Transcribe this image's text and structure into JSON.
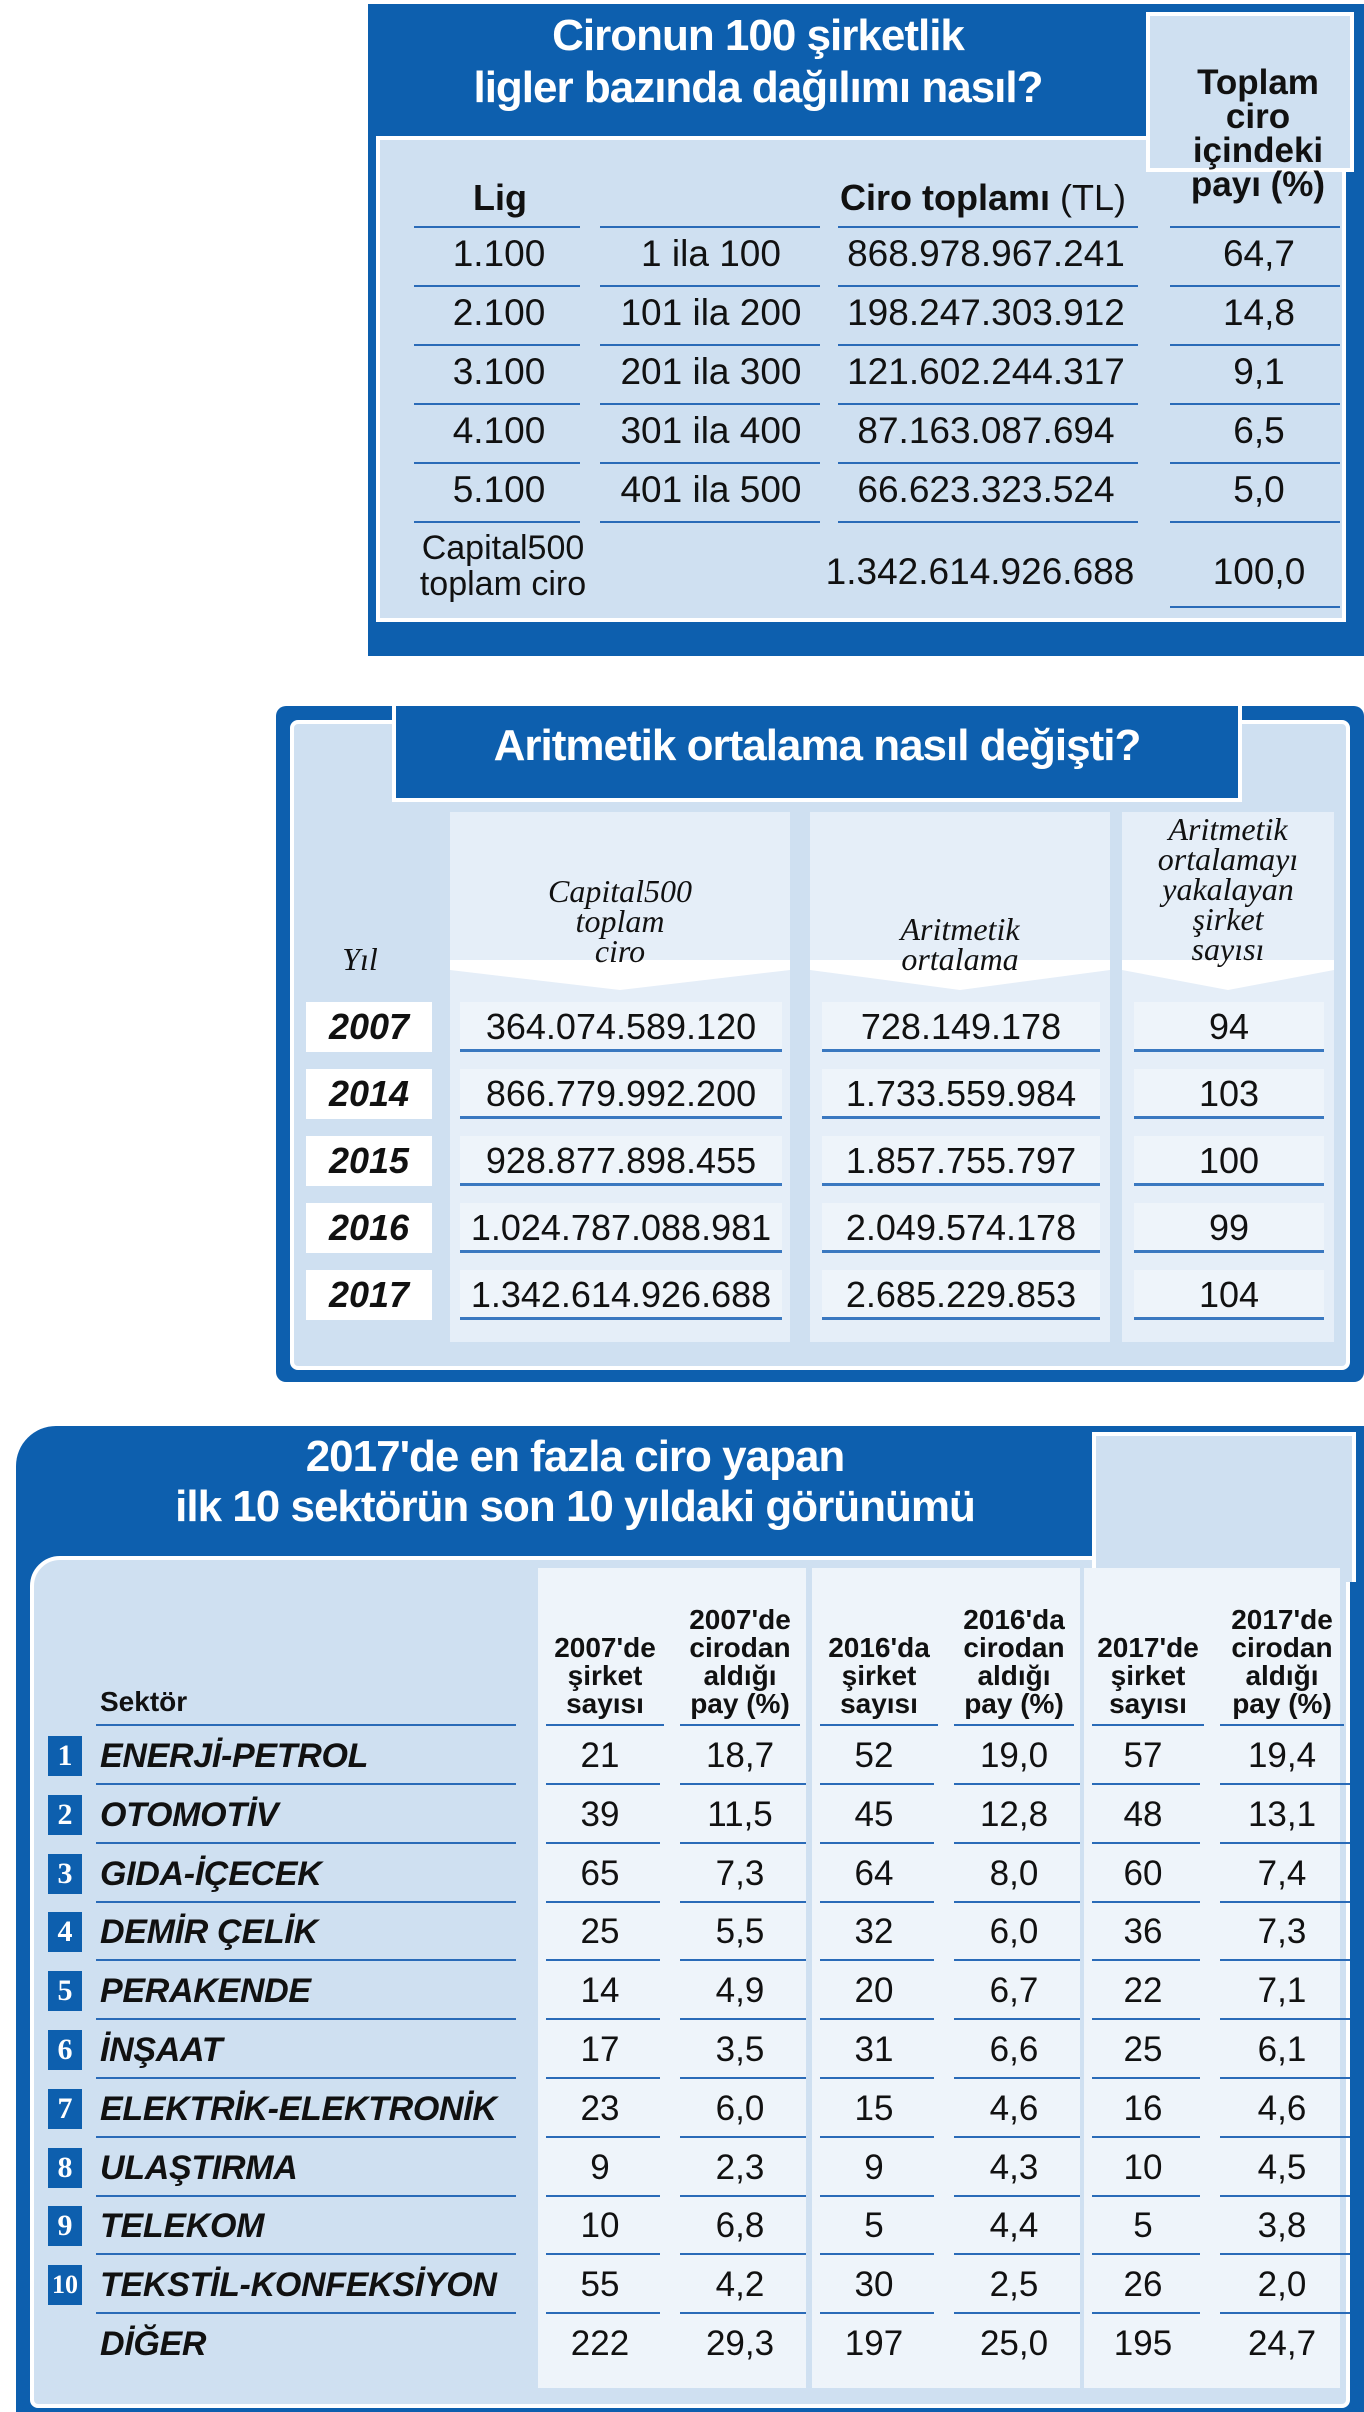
{
  "table1": {
    "title_line1": "Cironun 100 şirketlik",
    "title_line2": "ligler bazında dağılımı nasıl?",
    "header_lig": "Lig",
    "header_ciro": "Ciro toplamı",
    "header_ciro_unit": "(TL)",
    "header_pay_line1": "Toplam",
    "header_pay_line2": "ciro",
    "header_pay_line3": "içindeki",
    "header_pay_line4": "payı (%)",
    "rows": [
      {
        "lig": "1.100",
        "range": "1 ila 100",
        "ciro": "868.978.967.241",
        "pay": "64,7"
      },
      {
        "lig": "2.100",
        "range": "101 ila 200",
        "ciro": "198.247.303.912",
        "pay": "14,8"
      },
      {
        "lig": "3.100",
        "range": "201 ila 300",
        "ciro": "121.602.244.317",
        "pay": "9,1"
      },
      {
        "lig": "4.100",
        "range": "301 ila 400",
        "ciro": "87.163.087.694",
        "pay": "6,5"
      },
      {
        "lig": "5.100",
        "range": "401 ila 500",
        "ciro": "66.623.323.524",
        "pay": "5,0"
      }
    ],
    "total_label_line1": "Capital500",
    "total_label_line2": "toplam ciro",
    "total_ciro": "1.342.614.926.688",
    "total_pay": "100,0"
  },
  "table2": {
    "title": "Aritmetik ortalama nasıl değişti?",
    "header_year": "Yıl",
    "header_total_line1": "Capital500",
    "header_total_line2": "toplam",
    "header_total_line3": "ciro",
    "header_avg_line1": "Aritmetik",
    "header_avg_line2": "ortalama",
    "header_count_line1": "Aritmetik",
    "header_count_line2": "ortalamayı",
    "header_count_line3": "yakalayan",
    "header_count_line4": "şirket",
    "header_count_line5": "sayısı",
    "rows": [
      {
        "year": "2007",
        "total": "364.074.589.120",
        "avg": "728.149.178",
        "count": "94"
      },
      {
        "year": "2014",
        "total": "866.779.992.200",
        "avg": "1.733.559.984",
        "count": "103"
      },
      {
        "year": "2015",
        "total": "928.877.898.455",
        "avg": "1.857.755.797",
        "count": "100"
      },
      {
        "year": "2016",
        "total": "1.024.787.088.981",
        "avg": "2.049.574.178",
        "count": "99"
      },
      {
        "year": "2017",
        "total": "1.342.614.926.688",
        "avg": "2.685.229.853",
        "count": "104"
      }
    ]
  },
  "table3": {
    "title_line1": "2017'de en fazla ciro yapan",
    "title_line2": "ilk 10 sektörün son 10 yıldaki görünümü",
    "header_sector": "Sektör",
    "headers": [
      [
        "2007'de",
        "şirket",
        "sayısı"
      ],
      [
        "2007'de",
        "cirodan",
        "aldığı",
        "pay (%)"
      ],
      [
        "2016'da",
        "şirket",
        "sayısı"
      ],
      [
        "2016'da",
        "cirodan",
        "aldığı",
        "pay (%)"
      ],
      [
        "2017'de",
        "şirket",
        "sayısı"
      ],
      [
        "2017'de",
        "cirodan",
        "aldığı",
        "pay (%)"
      ]
    ],
    "rows": [
      {
        "rank": "1",
        "name": "ENERJİ-PETROL",
        "v": [
          "21",
          "18,7",
          "52",
          "19,0",
          "57",
          "19,4"
        ]
      },
      {
        "rank": "2",
        "name": "OTOMOTİV",
        "v": [
          "39",
          "11,5",
          "45",
          "12,8",
          "48",
          "13,1"
        ]
      },
      {
        "rank": "3",
        "name": "GIDA-İÇECEK",
        "v": [
          "65",
          "7,3",
          "64",
          "8,0",
          "60",
          "7,4"
        ]
      },
      {
        "rank": "4",
        "name": "DEMİR ÇELİK",
        "v": [
          "25",
          "5,5",
          "32",
          "6,0",
          "36",
          "7,3"
        ]
      },
      {
        "rank": "5",
        "name": "PERAKENDE",
        "v": [
          "14",
          "4,9",
          "20",
          "6,7",
          "22",
          "7,1"
        ]
      },
      {
        "rank": "6",
        "name": "İNŞAAT",
        "v": [
          "17",
          "3,5",
          "31",
          "6,6",
          "25",
          "6,1"
        ]
      },
      {
        "rank": "7",
        "name": "ELEKTRİK-ELEKTRONİK",
        "v": [
          "23",
          "6,0",
          "15",
          "4,6",
          "16",
          "4,6"
        ]
      },
      {
        "rank": "8",
        "name": "ULAŞTIRMA",
        "v": [
          "9",
          "2,3",
          "9",
          "4,3",
          "10",
          "4,5"
        ]
      },
      {
        "rank": "9",
        "name": "TELEKOM",
        "v": [
          "10",
          "6,8",
          "5",
          "4,4",
          "5",
          "3,8"
        ]
      },
      {
        "rank": "10",
        "name": "TEKSTİL-KONFEKSİYON",
        "v": [
          "55",
          "4,2",
          "30",
          "2,5",
          "26",
          "2,0"
        ]
      },
      {
        "rank": "",
        "name": "DİĞER",
        "v": [
          "222",
          "29,3",
          "197",
          "25,0",
          "195",
          "24,7"
        ]
      }
    ]
  },
  "colors": {
    "accent_blue": "#0d5fae",
    "panel_light": "#cfe0f1",
    "cell_light": "#eef4fa"
  }
}
